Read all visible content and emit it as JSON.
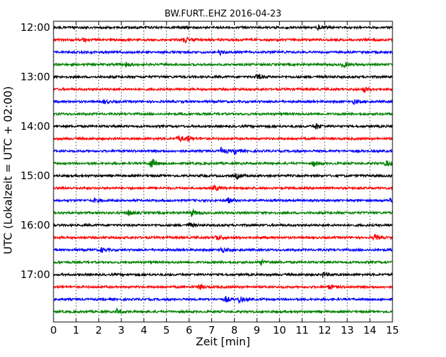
{
  "chart_data": {
    "type": "line",
    "title": "BW.FURT..EHZ 2016-04-23",
    "xlabel": "Zeit  [min]",
    "ylabel": "UTC (Lokalzeit = UTC + 02:00)",
    "xlim": [
      0,
      15
    ],
    "x_ticks": [
      "0",
      "1",
      "2",
      "3",
      "4",
      "5",
      "6",
      "7",
      "8",
      "9",
      "10",
      "11",
      "12",
      "13",
      "14",
      "15"
    ],
    "y_ticks": [
      "12:00",
      "13:00",
      "14:00",
      "15:00",
      "16:00",
      "17:00"
    ],
    "grid": "vertical-dotted",
    "line_colors": [
      "#000000",
      "#ff0000",
      "#0000ff",
      "#008000"
    ],
    "traces": [
      {
        "start": "12:00",
        "events": [
          [
            11.7,
            2.0
          ]
        ]
      },
      {
        "start": "12:15",
        "events": [
          [
            1.3,
            1.6
          ],
          [
            5.8,
            2.2
          ]
        ]
      },
      {
        "start": "12:30",
        "events": [
          [
            7.3,
            2.0
          ]
        ]
      },
      {
        "start": "12:45",
        "events": [
          [
            3.2,
            1.4
          ],
          [
            12.8,
            1.8
          ]
        ]
      },
      {
        "start": "13:00",
        "events": [
          [
            9.0,
            1.8
          ]
        ]
      },
      {
        "start": "13:15",
        "events": [
          [
            13.7,
            1.8
          ]
        ]
      },
      {
        "start": "13:30",
        "events": [
          [
            2.2,
            1.3
          ],
          [
            13.3,
            1.5
          ]
        ]
      },
      {
        "start": "13:45",
        "events": []
      },
      {
        "start": "14:00",
        "events": [
          [
            11.6,
            1.8
          ]
        ]
      },
      {
        "start": "14:15",
        "events": [
          [
            5.5,
            2.2
          ],
          [
            5.9,
            1.8
          ]
        ]
      },
      {
        "start": "14:30",
        "events": [
          [
            7.4,
            2.0
          ],
          [
            8.0,
            1.8
          ]
        ]
      },
      {
        "start": "14:45",
        "events": [
          [
            4.3,
            3.4
          ],
          [
            11.5,
            1.8
          ],
          [
            14.7,
            1.8
          ]
        ]
      },
      {
        "start": "15:00",
        "events": [
          [
            8.1,
            1.6
          ]
        ]
      },
      {
        "start": "15:15",
        "events": [
          [
            7.1,
            1.8
          ]
        ]
      },
      {
        "start": "15:30",
        "events": [
          [
            1.8,
            1.3
          ],
          [
            7.7,
            1.6
          ],
          [
            14.9,
            1.6
          ]
        ]
      },
      {
        "start": "15:45",
        "events": [
          [
            3.3,
            1.8
          ],
          [
            6.1,
            2.0
          ]
        ]
      },
      {
        "start": "16:00",
        "events": [
          [
            6.0,
            1.4
          ]
        ]
      },
      {
        "start": "16:15",
        "events": [
          [
            7.2,
            2.0
          ],
          [
            14.2,
            1.6
          ]
        ]
      },
      {
        "start": "16:30",
        "events": [
          [
            2.1,
            1.3
          ],
          [
            7.4,
            1.6
          ]
        ]
      },
      {
        "start": "16:45",
        "events": [
          [
            9.2,
            1.6
          ]
        ]
      },
      {
        "start": "17:00",
        "events": [
          [
            11.9,
            1.6
          ]
        ]
      },
      {
        "start": "17:15",
        "events": [
          [
            6.4,
            2.0
          ],
          [
            12.2,
            1.6
          ]
        ]
      },
      {
        "start": "17:30",
        "events": [
          [
            7.6,
            1.8
          ],
          [
            8.2,
            1.8
          ]
        ]
      },
      {
        "start": "17:45",
        "events": [
          [
            2.8,
            1.6
          ]
        ]
      }
    ]
  }
}
